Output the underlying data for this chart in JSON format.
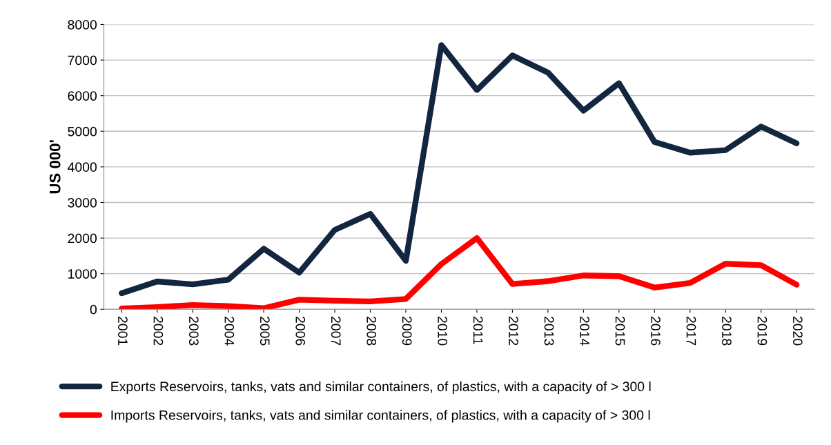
{
  "chart_data": {
    "type": "line",
    "ylabel": "US 000'",
    "categories": [
      "2001",
      "2002",
      "2003",
      "2004",
      "2005",
      "2006",
      "2007",
      "2008",
      "2009",
      "2010",
      "2011",
      "2012",
      "2013",
      "2014",
      "2015",
      "2016",
      "2017",
      "2018",
      "2019",
      "2020"
    ],
    "series": [
      {
        "name": "Exports Reservoirs, tanks, vats and similar containers, of plastics, with a capacity of > 300 l",
        "color": "#12263f",
        "values": [
          450,
          780,
          700,
          830,
          1700,
          1030,
          2230,
          2680,
          1360,
          7420,
          6160,
          7130,
          6650,
          5580,
          6350,
          4700,
          4400,
          4470,
          5130,
          4660
        ]
      },
      {
        "name": "Imports Reservoirs, tanks, vats and similar containers, of plastics, with a capacity of > 300 l",
        "color": "#ff0000",
        "values": [
          20,
          60,
          120,
          90,
          30,
          270,
          240,
          220,
          290,
          1270,
          2000,
          710,
          790,
          950,
          930,
          610,
          740,
          1280,
          1240,
          690
        ]
      }
    ],
    "ylim": [
      0,
      8000
    ],
    "yticks": [
      0,
      1000,
      2000,
      3000,
      4000,
      5000,
      6000,
      7000,
      8000
    ],
    "grid": "y",
    "legend": "bottom",
    "marker": "none",
    "line_style": "solid"
  }
}
